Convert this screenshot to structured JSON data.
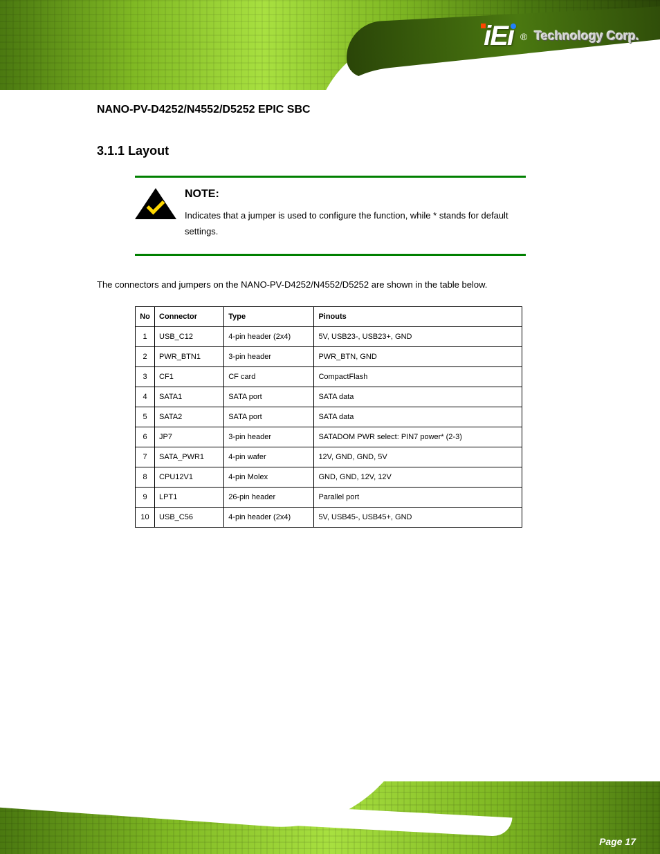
{
  "logo": {
    "brand": "iEi",
    "tagline": "Technology Corp.",
    "registered": "®"
  },
  "doc_title": "NANO-PV-D4252/N4552/D5252 EPIC SBC",
  "section": {
    "number": "3.1.1",
    "title": "Layout"
  },
  "callout": {
    "heading": "NOTE:",
    "body": "Indicates that a jumper is used to configure the function, while * stands for default settings."
  },
  "body_paragraph": "The connectors and jumpers on the NANO-PV-D4252/N4552/D5252 are shown in the table below.",
  "table": {
    "columns": [
      "No",
      "Connector",
      "Type",
      "Pinouts"
    ],
    "rows": [
      [
        "1",
        "USB_C12",
        "4-pin header (2x4)",
        "5V, USB23-, USB23+, GND"
      ],
      [
        "2",
        "PWR_BTN1",
        "3-pin header",
        "PWR_BTN, GND"
      ],
      [
        "3",
        "CF1",
        "CF card",
        "CompactFlash"
      ],
      [
        "4",
        "SATA1",
        "SATA port",
        "SATA data"
      ],
      [
        "5",
        "SATA2",
        "SATA port",
        "SATA data"
      ],
      [
        "6",
        "JP7",
        "3-pin header",
        "SATADOM PWR select: PIN7 power* (2-3)"
      ],
      [
        "7",
        "SATA_PWR1",
        "4-pin wafer",
        "12V, GND, GND, 5V"
      ],
      [
        "8",
        "CPU12V1",
        "4-pin Molex",
        "GND, GND, 12V, 12V"
      ],
      [
        "9",
        "LPT1",
        "26-pin header",
        "Parallel port"
      ],
      [
        "10",
        "USB_C56",
        "4-pin header (2x4)",
        "5V, USB45-, USB45+, GND"
      ]
    ]
  },
  "page_number": "Page 17",
  "colors": {
    "green_hr": "#008000",
    "header_green_dark": "#4a7810",
    "header_green_light": "#a8e040",
    "checkmark": "#ffd700",
    "text": "#000000",
    "background": "#ffffff"
  }
}
